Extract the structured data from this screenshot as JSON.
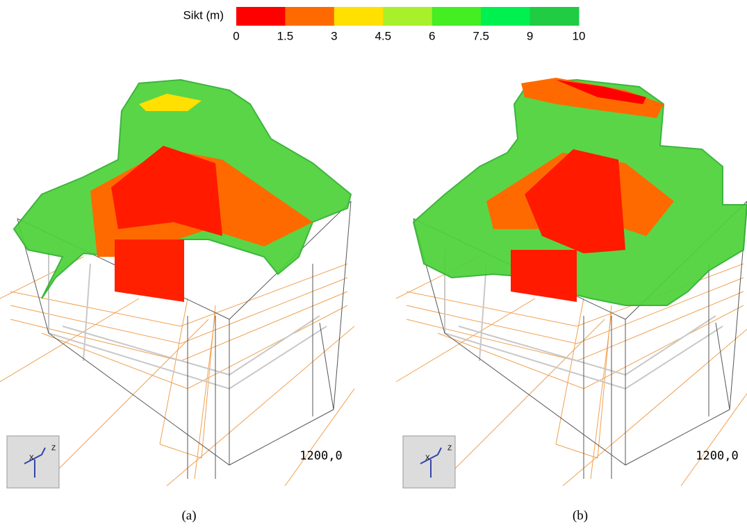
{
  "colorbar": {
    "title": "Sikt (m)",
    "ticks": [
      "0",
      "1.5",
      "3",
      "4.5",
      "6",
      "7.5",
      "9",
      "10"
    ],
    "colors": [
      "#ff0000",
      "#ff6a00",
      "#ffe000",
      "#a8f02a",
      "#44ee22",
      "#00f050",
      "#20cc44"
    ]
  },
  "panels": [
    {
      "label": "(a)",
      "time": "1200,0",
      "axis_labels": [
        "X",
        "Z"
      ]
    },
    {
      "label": "(b)",
      "time": "1200,0",
      "axis_labels": [
        "X",
        "Z"
      ]
    }
  ]
}
